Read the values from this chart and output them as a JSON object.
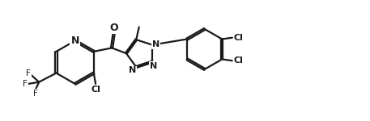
{
  "bg_color": "#ffffff",
  "line_color": "#1a1a1a",
  "line_width": 1.6,
  "font_size": 8.5,
  "figsize": [
    4.57,
    1.5
  ],
  "dpi": 100,
  "xlim": [
    0,
    10.2
  ],
  "ylim": [
    0,
    3.3
  ]
}
